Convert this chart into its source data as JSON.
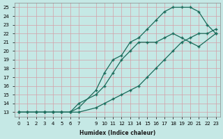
{
  "xlabel": "Humidex (Indice chaleur)",
  "ylabel": "",
  "bg_color": "#c5e8e5",
  "grid_color": "#d4a0a8",
  "line_color": "#1a6b5a",
  "xlim": [
    -0.5,
    23.5
  ],
  "ylim": [
    12.5,
    25.5
  ],
  "xticks": [
    0,
    1,
    2,
    3,
    4,
    5,
    6,
    7,
    9,
    10,
    11,
    12,
    13,
    14,
    15,
    16,
    17,
    18,
    19,
    20,
    21,
    22,
    23
  ],
  "yticks": [
    13,
    14,
    15,
    16,
    17,
    18,
    19,
    20,
    21,
    22,
    23,
    24,
    25
  ],
  "line1": {
    "x": [
      0,
      1,
      2,
      3,
      4,
      5,
      6,
      7,
      9,
      10,
      11,
      12,
      13,
      14,
      15,
      16,
      17,
      18,
      19,
      20,
      21,
      22,
      23
    ],
    "y": [
      13,
      13,
      13,
      13,
      13,
      13,
      13,
      13.5,
      15.5,
      17.5,
      19,
      19.5,
      21,
      21.5,
      22.5,
      23.5,
      24.5,
      25,
      25,
      25,
      24.5,
      23,
      22
    ]
  },
  "line2": {
    "x": [
      0,
      1,
      2,
      3,
      4,
      5,
      6,
      7,
      9,
      10,
      11,
      12,
      13,
      14,
      15,
      16,
      17,
      18,
      19,
      20,
      21,
      22,
      23
    ],
    "y": [
      13,
      13,
      13,
      13,
      13,
      13,
      13,
      13,
      13.5,
      14,
      14.5,
      15,
      15.5,
      16,
      17,
      18,
      19,
      20,
      21,
      21.5,
      22,
      22,
      22.5
    ]
  },
  "line3": {
    "x": [
      0,
      2,
      3,
      4,
      5,
      6,
      7,
      9,
      10,
      11,
      12,
      13,
      14,
      15,
      16,
      17,
      18,
      19,
      20,
      21,
      23
    ],
    "y": [
      13,
      13,
      13,
      13,
      13,
      13,
      14,
      15,
      16,
      17.5,
      19,
      20,
      21,
      21,
      21,
      21.5,
      22,
      21.5,
      21,
      20.5,
      22
    ]
  }
}
